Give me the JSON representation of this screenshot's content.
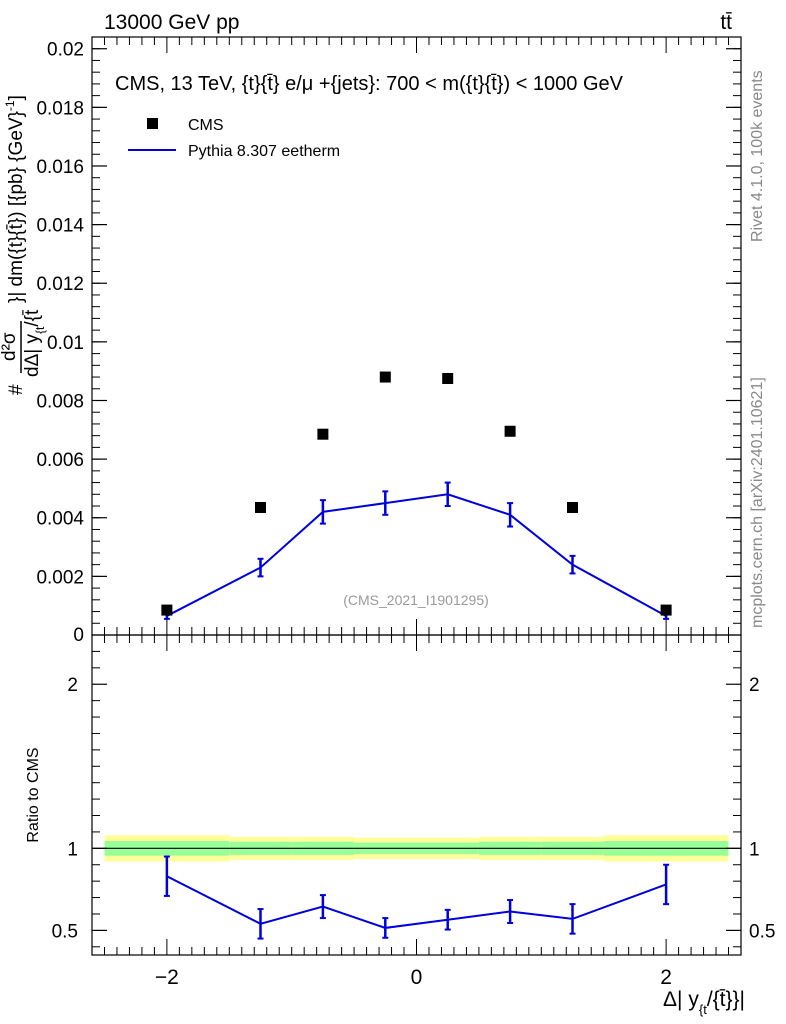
{
  "header": {
    "left": "13000 GeV pp",
    "right": "tt̄"
  },
  "side_text": {
    "rivet": "Rivet 4.1.0,  100k events",
    "mcplots": "mcplots.cern.ch [arXiv:2401.10621]"
  },
  "labels": {
    "analysis_id": "(CMS_2021_I1901295)",
    "ratio_ylabel": "Ratio to CMS",
    "ylabel_prefix": "#",
    "ylabel_numerator": "d²σ",
    "ylabel_denominator": "dΔ| y",
    "ylabel_sub1": "{t",
    "ylabel_mid": "/{t̄",
    "ylabel_suffix": "}| dm({t}{t̄}) [{pb} {GeV}",
    "ylabel_exp": "-1",
    "ylabel_close": "]",
    "xlabel_main": "Δ| y",
    "xlabel_sub": "{t",
    "xlabel_tail": "/{t̄}}|"
  },
  "colors": {
    "data": "#000000",
    "mc": "#0000dd",
    "band_inner": "#99ff99",
    "band_outer": "#ffff99",
    "analysis_id": "#999999",
    "side_text": "#888888"
  },
  "chart_data": [
    {
      "type": "scatter",
      "title": "CMS, 13 TeV, {t}{t̄} e/μ +{jets}: 700 < m({t}{t̄}) < 1000 GeV",
      "x": [
        -2.0,
        -1.25,
        -0.75,
        -0.25,
        0.25,
        0.75,
        1.25,
        2.0
      ],
      "bin_edges": [
        -2.5,
        -1.5,
        -1.0,
        -0.5,
        0.0,
        0.5,
        1.0,
        1.5,
        2.5
      ],
      "xlim": [
        -2.6,
        2.6
      ],
      "ylim": [
        0,
        0.0204
      ],
      "yticks": [
        0.002,
        0.004,
        0.006,
        0.008,
        0.01,
        0.012,
        0.014,
        0.016,
        0.018,
        0.02
      ],
      "ytick_labels": [
        "0.002",
        "0.004",
        "0.006",
        "0.008",
        "0.01",
        "0.012",
        "0.014",
        "0.016",
        "0.018",
        "0.02"
      ],
      "y_zero_label": "0",
      "series": [
        {
          "name": "CMS",
          "style": "markers",
          "values": [
            0.00085,
            0.00435,
            0.00685,
            0.0088,
            0.00875,
            0.00695,
            0.00435,
            0.00085
          ]
        },
        {
          "name": "Pythia 8.307 eetherm",
          "style": "line",
          "values": [
            0.00065,
            0.0023,
            0.0042,
            0.0045,
            0.0048,
            0.0041,
            0.0024,
            0.00065
          ],
          "errors": [
            0.0001,
            0.0003,
            0.0004,
            0.0004,
            0.0004,
            0.0004,
            0.0003,
            0.0001
          ]
        }
      ],
      "legend": "top-left"
    },
    {
      "type": "line",
      "ylabel": "Ratio to CMS",
      "x": [
        -2.0,
        -1.25,
        -0.75,
        -0.25,
        0.25,
        0.75,
        1.25,
        2.0
      ],
      "bin_edges": [
        -2.5,
        -1.5,
        -1.0,
        -0.5,
        0.0,
        0.5,
        1.0,
        1.5,
        2.5
      ],
      "xlim": [
        -2.6,
        2.6
      ],
      "ylim": [
        0.35,
        2.3
      ],
      "yticks": [
        0.5,
        1,
        2
      ],
      "ytick_labels": [
        "0.5",
        "1",
        "2"
      ],
      "xticks": [
        -2,
        0,
        2
      ],
      "xtick_labels": [
        "−2",
        "0",
        "2"
      ],
      "band_inner": [
        0.045,
        0.04,
        0.04,
        0.035,
        0.035,
        0.04,
        0.04,
        0.045
      ],
      "band_outer": [
        0.08,
        0.07,
        0.07,
        0.065,
        0.065,
        0.07,
        0.07,
        0.08
      ],
      "values": [
        0.83,
        0.54,
        0.645,
        0.515,
        0.565,
        0.615,
        0.57,
        0.78
      ],
      "errors": [
        0.12,
        0.09,
        0.07,
        0.06,
        0.06,
        0.07,
        0.09,
        0.12
      ]
    }
  ]
}
